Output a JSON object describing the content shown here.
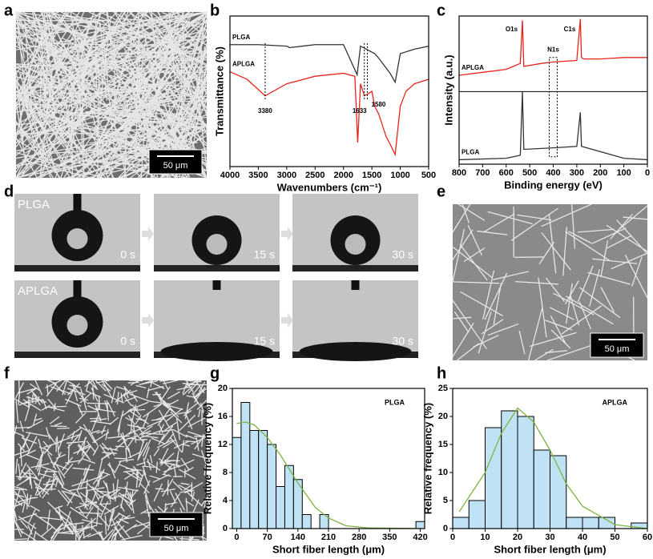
{
  "panels": {
    "labels": [
      "a",
      "b",
      "c",
      "d",
      "e",
      "f",
      "g",
      "h"
    ],
    "scale_bars": [
      "50 μm",
      "50 μm",
      "50 μm"
    ],
    "contact_angle": {
      "rows": [
        "PLGA",
        "APLGA"
      ],
      "times": [
        "0 s",
        "15 s",
        "30 s"
      ]
    }
  },
  "chart_data": [
    {
      "type": "line",
      "xlabel": "Wavenumbers (cm⁻¹)",
      "ylabel": "Transmittance (%)",
      "xlim": [
        4000,
        500
      ],
      "xticks": [
        4000,
        3500,
        3000,
        2500,
        2000,
        1500,
        1000,
        500
      ],
      "ylim": [
        0,
        100
      ],
      "annotations": [
        3380,
        1633,
        1580
      ],
      "series": [
        {
          "name": "PLGA",
          "color": "#333333",
          "x": [
            4000,
            3500,
            3000,
            2950,
            2500,
            2000,
            1760,
            1700,
            1450,
            1380,
            1180,
            1090,
            1000,
            750,
            500
          ],
          "values": [
            81,
            81,
            80,
            79,
            81,
            81,
            61,
            80,
            75,
            72,
            62,
            56,
            75,
            78,
            80
          ]
        },
        {
          "name": "APLGA",
          "color": "#e8241c",
          "x": [
            4000,
            3700,
            3380,
            3000,
            2500,
            2000,
            1800,
            1750,
            1700,
            1633,
            1580,
            1500,
            1450,
            1380,
            1250,
            1180,
            1090,
            1000,
            900,
            750,
            500
          ],
          "values": [
            63,
            58,
            47,
            55,
            60,
            62,
            60,
            16,
            55,
            47,
            48,
            50,
            40,
            35,
            20,
            15,
            8,
            40,
            50,
            55,
            58
          ]
        }
      ]
    },
    {
      "type": "line",
      "xlabel": "Binding energy (eV)",
      "ylabel": "Intensity (a.u.)",
      "xlim": [
        800,
        0
      ],
      "xticks": [
        800,
        700,
        600,
        500,
        400,
        300,
        200,
        100,
        0
      ],
      "ylim": [
        0,
        100
      ],
      "peaks": [
        {
          "x": 531,
          "label": "O1s"
        },
        {
          "x": 285,
          "label": "C1s"
        },
        {
          "x": 400,
          "label": "N1s"
        }
      ],
      "series": [
        {
          "name": "APLGA",
          "color": "#e8241c",
          "x": [
            800,
            700,
            600,
            540,
            531,
            525,
            450,
            400,
            300,
            285,
            280,
            270,
            200,
            100,
            0
          ],
          "values": [
            60,
            62,
            64,
            68,
            97,
            66,
            68,
            69,
            70,
            98,
            72,
            71,
            71,
            72,
            72
          ]
        },
        {
          "name": "PLGA",
          "color": "#333333",
          "x": [
            800,
            600,
            540,
            531,
            525,
            400,
            300,
            285,
            280,
            100,
            0
          ],
          "values": [
            3,
            4,
            6,
            49,
            10,
            11,
            12,
            35,
            12,
            4,
            3
          ]
        }
      ]
    },
    {
      "type": "histogram",
      "label": "PLGA",
      "xlabel": "Short fiber length (μm)",
      "ylabel": "Relative frequency (%)",
      "xlim": [
        -10,
        430
      ],
      "xticks": [
        0,
        70,
        140,
        210,
        280,
        350,
        420
      ],
      "ylim": [
        0,
        20
      ],
      "yticks": [
        0,
        4,
        8,
        12,
        16,
        20
      ],
      "color": "#bfe3f5",
      "bins": [
        -10,
        10,
        30,
        50,
        70,
        90,
        110,
        130,
        150,
        170,
        190,
        210,
        230,
        250,
        270,
        290,
        310,
        330,
        350,
        370,
        390,
        410,
        430
      ],
      "values": [
        13,
        18,
        14,
        14,
        12,
        6,
        9,
        7,
        2,
        0,
        2,
        0,
        0,
        0,
        0,
        0,
        0,
        0,
        0,
        0,
        0,
        1
      ],
      "fit": {
        "color": "#7cb342",
        "x": [
          0,
          20,
          40,
          70,
          100,
          140,
          180,
          210,
          250,
          300,
          420
        ],
        "values": [
          15,
          15.2,
          14.8,
          13,
          10.5,
          6.5,
          3,
          1.5,
          0.4,
          0.1,
          0
        ]
      }
    },
    {
      "type": "histogram",
      "label": "APLGA",
      "xlabel": "Short fiber length (μm)",
      "ylabel": "Relative frequency (%)",
      "xlim": [
        0,
        60
      ],
      "xticks": [
        0,
        10,
        20,
        30,
        40,
        50,
        60
      ],
      "ylim": [
        0,
        25
      ],
      "yticks": [
        0,
        5,
        10,
        15,
        20,
        25
      ],
      "color": "#bfe3f5",
      "bins": [
        0,
        5,
        10,
        15,
        20,
        25,
        30,
        35,
        40,
        45,
        50,
        55,
        60
      ],
      "values": [
        2,
        5,
        18,
        21,
        20,
        14,
        13,
        2,
        2,
        2,
        0,
        1
      ],
      "fit": {
        "color": "#7cb342",
        "x": [
          2,
          10,
          15,
          20,
          25,
          30,
          35,
          40,
          50,
          60
        ],
        "values": [
          3,
          10,
          17,
          21.5,
          19,
          14,
          8,
          4,
          0.7,
          0
        ]
      }
    }
  ]
}
